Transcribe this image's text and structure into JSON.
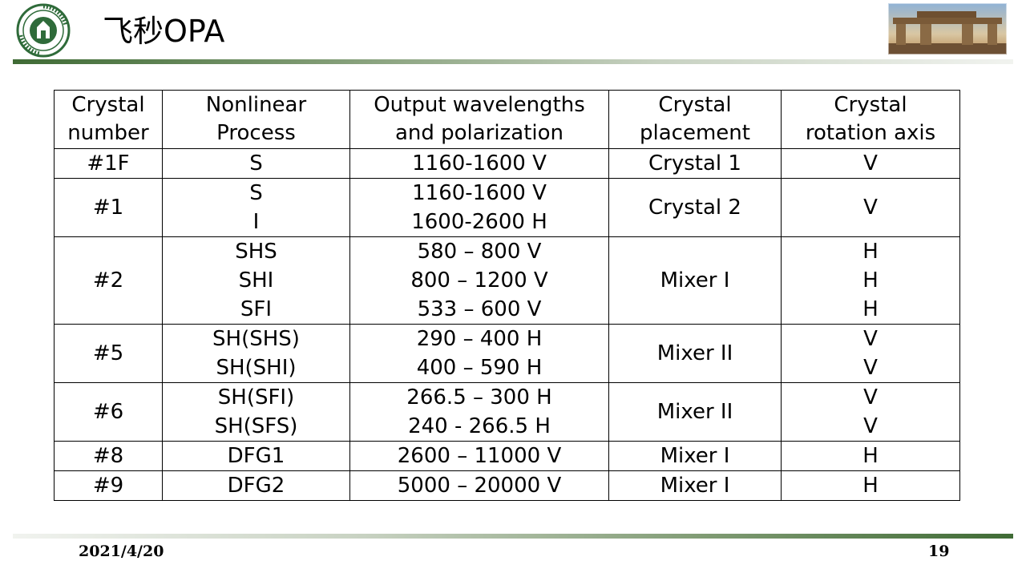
{
  "title": "飞秒OPA",
  "footer": {
    "date": "2021/4/20",
    "page": "19"
  },
  "table": {
    "headers": [
      [
        "Crystal",
        "number"
      ],
      [
        "Nonlinear",
        "Process"
      ],
      [
        "Output wavelengths",
        "and polarization"
      ],
      [
        "Crystal",
        "placement"
      ],
      [
        "Crystal",
        "rotation axis"
      ]
    ],
    "rows": [
      {
        "number": "#1F",
        "process": [
          "S"
        ],
        "output": [
          "1160-1600 V"
        ],
        "placement": "Crystal 1",
        "axis": [
          "V"
        ]
      },
      {
        "number": "#1",
        "process": [
          "S",
          "I"
        ],
        "output": [
          "1160-1600 V",
          "1600-2600 H"
        ],
        "placement": "Crystal 2",
        "axis": [
          "V"
        ]
      },
      {
        "number": "#2",
        "process": [
          "SHS",
          "SHI",
          "SFI"
        ],
        "output": [
          "580 – 800 V",
          "800 – 1200 V",
          "533 – 600 V"
        ],
        "placement": "Mixer I",
        "axis": [
          "H",
          "H",
          "H"
        ]
      },
      {
        "number": "#5",
        "process": [
          "SH(SHS)",
          "SH(SHI)"
        ],
        "output": [
          "290 – 400 H",
          "400 – 590 H"
        ],
        "placement": "Mixer II",
        "axis": [
          "V",
          "V"
        ]
      },
      {
        "number": "#6",
        "process": [
          "SH(SFI)",
          "SH(SFS)"
        ],
        "output": [
          "266.5 – 300 H",
          "240 - 266.5 H"
        ],
        "placement": "Mixer II",
        "axis": [
          "V",
          "V"
        ]
      },
      {
        "number": "#8",
        "process": [
          "DFG1"
        ],
        "output": [
          "2600 – 11000 V"
        ],
        "placement": "Mixer I",
        "axis": [
          "H"
        ]
      },
      {
        "number": "#9",
        "process": [
          "DFG2"
        ],
        "output": [
          "5000 – 20000 V"
        ],
        "placement": "Mixer I",
        "axis": [
          "H"
        ]
      }
    ]
  },
  "colors": {
    "accent_green": "#3f6b35",
    "logo_green": "#2f6b3a"
  },
  "icons": {
    "logo": "university-seal-icon",
    "photo": "gate-photo"
  }
}
